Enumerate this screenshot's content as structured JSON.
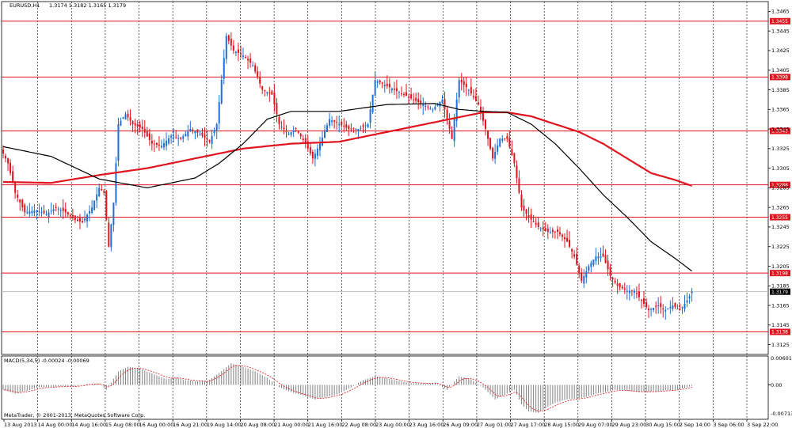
{
  "header": {
    "symbol": "EURUSD,H1",
    "ohlc": "1.3174 1.3182 1.3165 1.3179"
  },
  "macd": {
    "label": "MACD(5,34,5) -0.00024 -0.00069",
    "scale": [
      "0.00601",
      "0.00",
      "-0.00713"
    ]
  },
  "copyright": "MetaTrader, © 2001-2013, MetaQuotes Software Corp.",
  "colors": {
    "up_candle": "#1f6fd6",
    "down_candle": "#e0141e",
    "sma_fast": "#000000",
    "sma_slow": "#e0141e",
    "level_line": "#e0141e",
    "grid": "#000000",
    "histogram": "#808080",
    "signal": "#e0141e"
  },
  "chart_data": [
    {
      "type": "candlestick",
      "symbol": "EURUSD",
      "timeframe": "H1",
      "ylim": [
        1.3115,
        1.3475
      ],
      "y_ticks": [
        "1.3465",
        "1.3445",
        "1.3425",
        "1.3405",
        "1.3385",
        "1.3365",
        "1.3345",
        "1.3325",
        "1.3305",
        "1.3285",
        "1.3265",
        "1.3245",
        "1.3225",
        "1.3205",
        "1.3185",
        "1.3165",
        "1.3145",
        "1.3125"
      ],
      "x_ticks": [
        "13 Aug 2013",
        "14 Aug 00:00",
        "14 Aug 16:00",
        "15 Aug 08:00",
        "16 Aug 00:00",
        "16 Aug 21:00",
        "19 Aug 14:00",
        "20 Aug 08:00",
        "21 Aug 00:00",
        "21 Aug 16:00",
        "22 Aug 08:00",
        "23 Aug 00:00",
        "23 Aug 16:00",
        "26 Aug 09:00",
        "27 Aug 01:00",
        "27 Aug 17:00",
        "28 Aug 15:00",
        "29 Aug 07:00",
        "29 Aug 23:00",
        "30 Aug 15:00",
        "2 Sep 14:00",
        "3 Sep 06:00",
        "3 Sep 22:00"
      ],
      "price_levels": [
        "1.3455",
        "1.3398",
        "1.3343",
        "1.3288",
        "1.3255",
        "1.3198",
        "1.3138"
      ],
      "current_price": "1.3179",
      "grid": true,
      "anchors": [
        [
          0,
          1.332
        ],
        [
          2,
          1.331
        ],
        [
          5,
          1.328
        ],
        [
          9,
          1.326
        ],
        [
          14,
          1.3262
        ],
        [
          18,
          1.3258
        ],
        [
          22,
          1.3265
        ],
        [
          26,
          1.326
        ],
        [
          30,
          1.3252
        ],
        [
          33,
          1.325
        ],
        [
          37,
          1.3265
        ],
        [
          40,
          1.3285
        ],
        [
          42,
          1.328
        ],
        [
          44,
          1.3225
        ],
        [
          46,
          1.327
        ],
        [
          48,
          1.335
        ],
        [
          51,
          1.336
        ],
        [
          54,
          1.335
        ],
        [
          58,
          1.3345
        ],
        [
          62,
          1.333
        ],
        [
          66,
          1.3328
        ],
        [
          70,
          1.3338
        ],
        [
          74,
          1.3335
        ],
        [
          78,
          1.3345
        ],
        [
          82,
          1.334
        ],
        [
          86,
          1.3332
        ],
        [
          89,
          1.335
        ],
        [
          91,
          1.3395
        ],
        [
          93,
          1.344
        ],
        [
          96,
          1.3425
        ],
        [
          100,
          1.342
        ],
        [
          104,
          1.341
        ],
        [
          108,
          1.3385
        ],
        [
          112,
          1.338
        ],
        [
          115,
          1.335
        ],
        [
          119,
          1.334
        ],
        [
          122,
          1.3345
        ],
        [
          126,
          1.333
        ],
        [
          129,
          1.3315
        ],
        [
          132,
          1.333
        ],
        [
          136,
          1.3355
        ],
        [
          140,
          1.335
        ],
        [
          144,
          1.3345
        ],
        [
          148,
          1.3345
        ],
        [
          152,
          1.335
        ],
        [
          155,
          1.3395
        ],
        [
          159,
          1.339
        ],
        [
          163,
          1.3385
        ],
        [
          167,
          1.338
        ],
        [
          171,
          1.3375
        ],
        [
          175,
          1.337
        ],
        [
          179,
          1.3365
        ],
        [
          183,
          1.3375
        ],
        [
          187,
          1.3335
        ],
        [
          190,
          1.3395
        ],
        [
          194,
          1.3385
        ],
        [
          198,
          1.337
        ],
        [
          201,
          1.3345
        ],
        [
          204,
          1.3315
        ],
        [
          207,
          1.3335
        ],
        [
          210,
          1.3335
        ],
        [
          213,
          1.331
        ],
        [
          216,
          1.3265
        ],
        [
          219,
          1.3255
        ],
        [
          223,
          1.3245
        ],
        [
          227,
          1.324
        ],
        [
          231,
          1.324
        ],
        [
          235,
          1.323
        ],
        [
          238,
          1.3215
        ],
        [
          241,
          1.319
        ],
        [
          244,
          1.3205
        ],
        [
          247,
          1.3215
        ],
        [
          250,
          1.3215
        ],
        [
          253,
          1.3195
        ],
        [
          256,
          1.3185
        ],
        [
          260,
          1.318
        ],
        [
          263,
          1.318
        ],
        [
          266,
          1.317
        ],
        [
          269,
          1.316
        ],
        [
          273,
          1.3165
        ],
        [
          276,
          1.316
        ],
        [
          279,
          1.3165
        ],
        [
          282,
          1.316
        ],
        [
          285,
          1.317
        ],
        [
          287,
          1.3179
        ]
      ],
      "sma_fast_anchors": [
        [
          0,
          1.3327
        ],
        [
          20,
          1.3317
        ],
        [
          40,
          1.3294
        ],
        [
          60,
          1.3285
        ],
        [
          80,
          1.3295
        ],
        [
          90,
          1.331
        ],
        [
          100,
          1.333
        ],
        [
          110,
          1.3355
        ],
        [
          120,
          1.3363
        ],
        [
          140,
          1.3363
        ],
        [
          160,
          1.337
        ],
        [
          180,
          1.3371
        ],
        [
          190,
          1.3365
        ],
        [
          200,
          1.3363
        ],
        [
          210,
          1.3362
        ],
        [
          220,
          1.335
        ],
        [
          230,
          1.333
        ],
        [
          240,
          1.3305
        ],
        [
          250,
          1.3278
        ],
        [
          260,
          1.3255
        ],
        [
          270,
          1.323
        ],
        [
          280,
          1.3213
        ],
        [
          287,
          1.32
        ]
      ],
      "sma_slow_anchors": [
        [
          0,
          1.3291
        ],
        [
          20,
          1.329
        ],
        [
          40,
          1.3298
        ],
        [
          60,
          1.3305
        ],
        [
          80,
          1.3315
        ],
        [
          100,
          1.3325
        ],
        [
          120,
          1.333
        ],
        [
          140,
          1.3332
        ],
        [
          160,
          1.3342
        ],
        [
          180,
          1.3352
        ],
        [
          190,
          1.3357
        ],
        [
          200,
          1.3362
        ],
        [
          210,
          1.3362
        ],
        [
          220,
          1.3358
        ],
        [
          230,
          1.335
        ],
        [
          240,
          1.3342
        ],
        [
          250,
          1.333
        ],
        [
          260,
          1.3315
        ],
        [
          270,
          1.33
        ],
        [
          280,
          1.3293
        ],
        [
          287,
          1.3287
        ]
      ]
    },
    {
      "type": "bar",
      "name": "MACD(5,34,5)",
      "ylim": [
        -0.00713,
        0.00601
      ],
      "hist_anchors": [
        [
          0,
          -0.001
        ],
        [
          5,
          -0.0018
        ],
        [
          10,
          -0.0012
        ],
        [
          15,
          -0.0005
        ],
        [
          20,
          -0.0004
        ],
        [
          25,
          -0.0003
        ],
        [
          30,
          -0.0003
        ],
        [
          35,
          0.0002
        ],
        [
          40,
          0.0003
        ],
        [
          43,
          -0.001
        ],
        [
          48,
          0.0028
        ],
        [
          52,
          0.0038
        ],
        [
          56,
          0.0035
        ],
        [
          60,
          0.0028
        ],
        [
          64,
          0.002
        ],
        [
          68,
          0.0012
        ],
        [
          72,
          0.0015
        ],
        [
          76,
          0.001
        ],
        [
          80,
          0.0008
        ],
        [
          85,
          0.0007
        ],
        [
          90,
          0.0025
        ],
        [
          95,
          0.0045
        ],
        [
          100,
          0.0038
        ],
        [
          105,
          0.0028
        ],
        [
          110,
          0.0015
        ],
        [
          115,
          -0.0005
        ],
        [
          120,
          -0.0015
        ],
        [
          125,
          -0.0022
        ],
        [
          130,
          -0.003
        ],
        [
          135,
          -0.0025
        ],
        [
          140,
          -0.0018
        ],
        [
          145,
          -0.0005
        ],
        [
          150,
          0.001
        ],
        [
          155,
          0.0018
        ],
        [
          160,
          0.0014
        ],
        [
          165,
          0.0008
        ],
        [
          170,
          0.0004
        ],
        [
          175,
          0.0003
        ],
        [
          180,
          0.0004
        ],
        [
          185,
          -0.001
        ],
        [
          190,
          0.0018
        ],
        [
          195,
          0.0012
        ],
        [
          200,
          -0.0005
        ],
        [
          205,
          -0.003
        ],
        [
          210,
          -0.0018
        ],
        [
          213,
          -0.001
        ],
        [
          216,
          -0.004
        ],
        [
          219,
          -0.0055
        ],
        [
          223,
          -0.0058
        ],
        [
          227,
          -0.0045
        ],
        [
          231,
          -0.0035
        ],
        [
          235,
          -0.003
        ],
        [
          239,
          -0.0028
        ],
        [
          243,
          -0.0025
        ],
        [
          247,
          -0.0018
        ],
        [
          251,
          -0.0015
        ],
        [
          255,
          -0.001
        ],
        [
          260,
          -0.0012
        ],
        [
          265,
          -0.0015
        ],
        [
          270,
          -0.0014
        ],
        [
          275,
          -0.0012
        ],
        [
          280,
          -0.001
        ],
        [
          284,
          -0.0006
        ],
        [
          287,
          -0.0002
        ]
      ]
    }
  ]
}
